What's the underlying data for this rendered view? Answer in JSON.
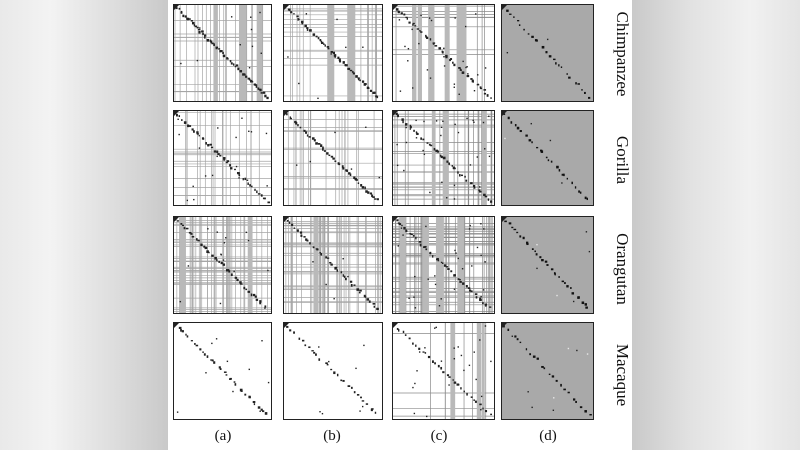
{
  "row_labels": [
    "Chimpanzee",
    "Gorilla",
    "Orangutan",
    "Macaque"
  ],
  "col_labels": [
    "(a)",
    "(b)",
    "(c)",
    "(d)"
  ]
}
